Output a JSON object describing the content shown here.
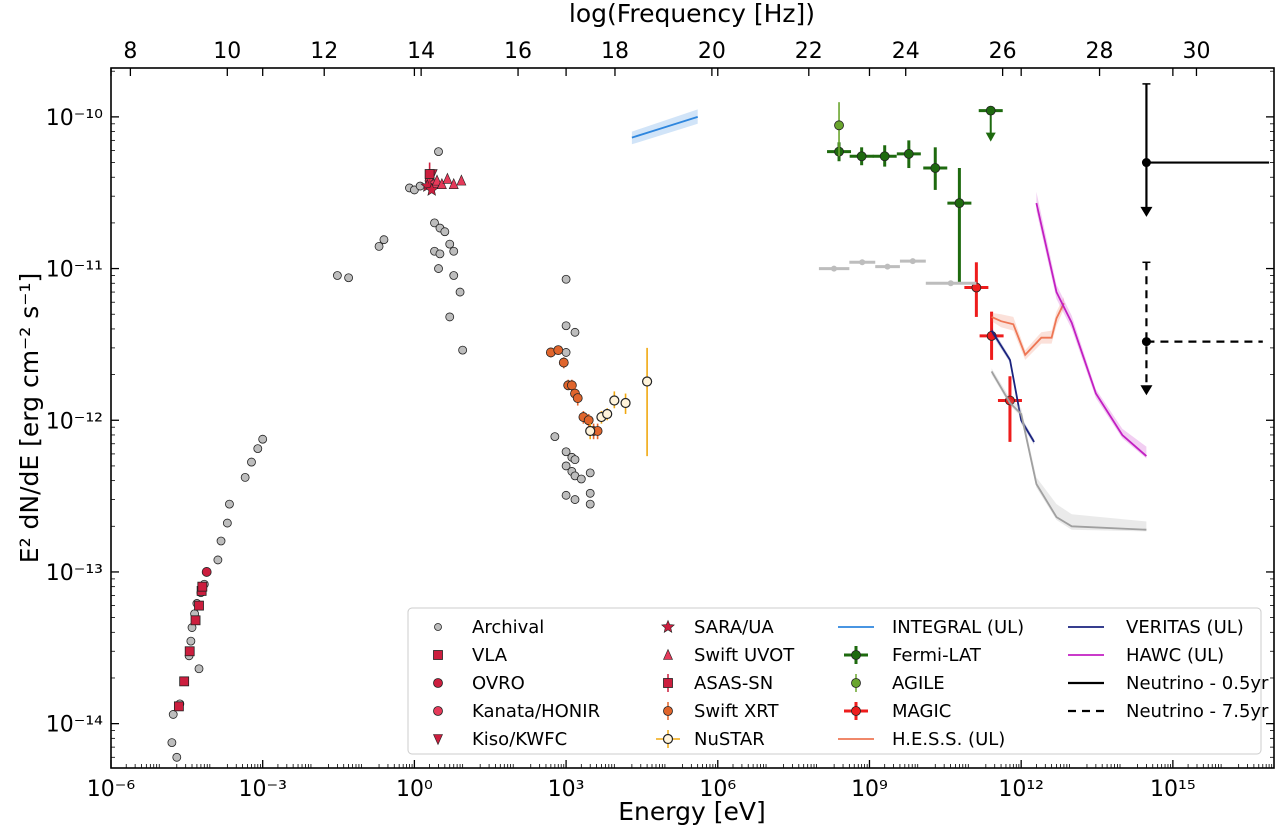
{
  "chart_data": {
    "type": "scatter",
    "title": "",
    "xlabel": "Energy [eV]",
    "x2label": "log(Frequency [Hz])",
    "ylabel": "E² dN/dE [erg cm⁻² s⁻¹]",
    "xscale": "log",
    "yscale": "log",
    "xlim": [
      1e-06,
      1e+17
    ],
    "ylim": [
      5.1e-15,
      2.1e-10
    ],
    "x2lim": [
      7.6,
      31.6
    ],
    "xticks": [
      {
        "value": 1e-06,
        "label": "10⁻⁶"
      },
      {
        "value": 0.001,
        "label": "10⁻³"
      },
      {
        "value": 1,
        "label": "10⁰"
      },
      {
        "value": 1000.0,
        "label": "10³"
      },
      {
        "value": 1000000.0,
        "label": "10⁶"
      },
      {
        "value": 1000000000.0,
        "label": "10⁹"
      },
      {
        "value": 1000000000000.0,
        "label": "10¹²"
      },
      {
        "value": 1000000000000000.0,
        "label": "10¹⁵"
      }
    ],
    "yticks": [
      {
        "value": 1e-14,
        "label": "10⁻¹⁴"
      },
      {
        "value": 1e-13,
        "label": "10⁻¹³"
      },
      {
        "value": 1e-12,
        "label": "10⁻¹²"
      },
      {
        "value": 1e-11,
        "label": "10⁻¹¹"
      },
      {
        "value": 1e-10,
        "label": "10⁻¹⁰"
      }
    ],
    "x2ticks": [
      "8",
      "10",
      "12",
      "14",
      "16",
      "18",
      "20",
      "22",
      "24",
      "26",
      "28",
      "30"
    ],
    "legend_placement": "lower-right",
    "series": [
      {
        "name": "Archival",
        "kind": "points",
        "marker": "circle",
        "color": "#bdbdbd",
        "points": [
          [
            1.6e-05,
            7.5e-15
          ],
          [
            1.7e-05,
            1.15e-14
          ],
          [
            2e-05,
            6e-15
          ],
          [
            2.3e-05,
            1.35e-14
          ],
          [
            2.8e-05,
            1.9e-14
          ],
          [
            3.5e-05,
            2.8e-14
          ],
          [
            3.8e-05,
            3.5e-14
          ],
          [
            4e-05,
            4.3e-14
          ],
          [
            4.5e-05,
            5.3e-14
          ],
          [
            5e-05,
            6.2e-14
          ],
          [
            5.5e-05,
            2.3e-14
          ],
          [
            6e-05,
            7.3e-14
          ],
          [
            7e-05,
            8.3e-14
          ],
          [
            0.00013,
            1.2e-13
          ],
          [
            0.00015,
            1.6e-13
          ],
          [
            0.0002,
            2.1e-13
          ],
          [
            0.00022,
            2.8e-13
          ],
          [
            0.00045,
            4.2e-13
          ],
          [
            0.0006,
            5.3e-13
          ],
          [
            0.0008,
            6.5e-13
          ],
          [
            0.001,
            7.5e-13
          ],
          [
            0.03,
            9e-12
          ],
          [
            0.05,
            8.7e-12
          ],
          [
            0.2,
            1.4e-11
          ],
          [
            0.25,
            1.55e-11
          ],
          [
            0.8,
            3.4e-11
          ],
          [
            1.0,
            3.3e-11
          ],
          [
            1.3,
            3.5e-11
          ],
          [
            3.0,
            5.9e-11
          ],
          [
            2.5,
            2e-11
          ],
          [
            3.2,
            1.85e-11
          ],
          [
            4.0,
            1.75e-11
          ],
          [
            2.5,
            1.3e-11
          ],
          [
            3.2,
            1.25e-11
          ],
          [
            5.0,
            1.45e-11
          ],
          [
            6.0,
            1.3e-11
          ],
          [
            3.0,
            1e-11
          ],
          [
            6.0,
            9e-12
          ],
          [
            5.0,
            4.8e-12
          ],
          [
            8.0,
            7e-12
          ],
          [
            9.0,
            2.9e-12
          ],
          [
            1000.0,
            8.5e-12
          ],
          [
            1000.0,
            4.2e-12
          ],
          [
            1500.0,
            3.8e-12
          ],
          [
            1000.0,
            2.8e-12
          ],
          [
            600,
            7.8e-13
          ],
          [
            1000.0,
            6.2e-13
          ],
          [
            1300.0,
            5.7e-13
          ],
          [
            1500.0,
            5.5e-13
          ],
          [
            1000.0,
            5e-13
          ],
          [
            1300.0,
            4.6e-13
          ],
          [
            1500.0,
            4.3e-13
          ],
          [
            2000.0,
            4.1e-13
          ],
          [
            3000.0,
            4.5e-13
          ],
          [
            1000.0,
            3.2e-13
          ],
          [
            1500.0,
            3e-13
          ],
          [
            3000.0,
            3.3e-13
          ],
          [
            3000.0,
            2.8e-13
          ]
        ]
      },
      {
        "name": "VLA",
        "kind": "points",
        "marker": "square",
        "color": "#cc1e3e",
        "points": [
          [
            2.2e-05,
            1.3e-14
          ],
          [
            2.8e-05,
            1.9e-14
          ],
          [
            3.6e-05,
            3e-14
          ],
          [
            4.7e-05,
            4.8e-14
          ],
          [
            5.5e-05,
            6e-14
          ],
          [
            6.2e-05,
            7.5e-14
          ],
          [
            6.4e-05,
            8e-14
          ]
        ]
      },
      {
        "name": "OVRO",
        "kind": "points",
        "marker": "circle",
        "color": "#cc1e3e",
        "points": [
          [
            7.8e-05,
            1e-13
          ]
        ]
      },
      {
        "name": "Kanata/HONIR",
        "kind": "points",
        "marker": "circle",
        "color": "#e63a5a",
        "points": [
          [
            2.0,
            3.8e-11
          ],
          [
            2.5,
            3.6e-11
          ]
        ]
      },
      {
        "name": "Kiso/KWFC",
        "kind": "points",
        "marker": "triangle-down",
        "color": "#cc1e3e",
        "points": [
          [
            2.3,
            4.2e-11
          ]
        ]
      },
      {
        "name": "SARA/UA",
        "kind": "points",
        "marker": "star",
        "color": "#cc1e3e",
        "points": [
          [
            1.8,
            3.5e-11
          ],
          [
            2.2,
            3.3e-11
          ]
        ]
      },
      {
        "name": "Swift UVOT",
        "kind": "points",
        "marker": "triangle-up",
        "color": "#e63a5a",
        "points": [
          [
            2.8,
            3.8e-11
          ],
          [
            3.5,
            3.6e-11
          ],
          [
            4.5,
            3.9e-11
          ],
          [
            6.0,
            3.6e-11
          ],
          [
            8.5,
            3.8e-11
          ]
        ]
      },
      {
        "name": "ASAS-SN",
        "kind": "errorpoints",
        "marker": "square",
        "color": "#cc1e3e",
        "points": [
          [
            2.0,
            4.2e-11,
            3.6e-11,
            5e-11
          ]
        ]
      },
      {
        "name": "Swift XRT",
        "kind": "errorpoints",
        "marker": "circle",
        "color": "#e0652c",
        "points": [
          [
            500,
            2.8e-12,
            2.6e-12,
            3e-12
          ],
          [
            700,
            2.9e-12,
            2.7e-12,
            3.1e-12
          ],
          [
            900,
            2.4e-12,
            2.2e-12,
            2.6e-12
          ],
          [
            1100.0,
            1.7e-12,
            1.6e-12,
            1.85e-12
          ],
          [
            1300.0,
            1.7e-12,
            1.55e-12,
            1.85e-12
          ],
          [
            1500.0,
            1.5e-12,
            1.35e-12,
            1.65e-12
          ],
          [
            1700.0,
            1.4e-12,
            1.25e-12,
            1.55e-12
          ],
          [
            2200.0,
            1.05e-12,
            9.5e-13,
            1.15e-12
          ],
          [
            2800.0,
            1e-12,
            9e-13,
            1.1e-12
          ],
          [
            3500.0,
            8.5e-13,
            7.5e-13,
            9.5e-13
          ],
          [
            4200.0,
            8.5e-13,
            7.5e-13,
            9.5e-13
          ]
        ]
      },
      {
        "name": "NuSTAR",
        "kind": "errorpoints",
        "marker": "circle-open",
        "color": "#f0a810",
        "points": [
          [
            3000.0,
            8.5e-13,
            7.5e-13,
            9.5e-13
          ],
          [
            5000.0,
            1.05e-12,
            9.5e-13,
            1.15e-12
          ],
          [
            6500.0,
            1.1e-12,
            1e-12,
            1.2e-12
          ],
          [
            9000.0,
            1.35e-12,
            1.2e-12,
            1.55e-12
          ],
          [
            15000.0,
            1.3e-12,
            1.1e-12,
            1.5e-12
          ],
          [
            40000.0,
            1.8e-12,
            5.8e-13,
            3e-12
          ]
        ]
      },
      {
        "name": "INTEGRAL (UL)",
        "kind": "band",
        "color": "#2e86de",
        "line": [
          [
            20000.0,
            7.3e-11
          ],
          [
            400000.0,
            1e-10
          ]
        ],
        "band": [
          [
            20000.0,
            6.6e-11,
            8e-11
          ],
          [
            400000.0,
            9e-11,
            1.12e-10
          ]
        ]
      },
      {
        "name": "Fermi-LAT",
        "kind": "errorpoints",
        "marker": "circle",
        "color": "#1e6a0f",
        "points": [
          [
            250000000.0,
            5.9e-11,
            5.1e-11,
            6.8e-11
          ],
          [
            700000000.0,
            5.5e-11,
            4.8e-11,
            6.3e-11
          ],
          [
            2000000000.0,
            5.5e-11,
            4.7e-11,
            6.5e-11
          ],
          [
            6000000000.0,
            5.7e-11,
            4.6e-11,
            7e-11
          ],
          [
            20000000000.0,
            4.6e-11,
            3.3e-11,
            6.3e-11
          ],
          [
            60000000000.0,
            2.7e-11,
            8e-12,
            4.6e-11
          ],
          [
            250000000000.0,
            1.1e-10,
            1.1e-10,
            1.1e-10
          ]
        ]
      },
      {
        "name": "AGILE",
        "kind": "errorpoints",
        "marker": "circle",
        "color": "#6aa52e",
        "points": [
          [
            250000000.0,
            8.8e-11,
            5.5e-11,
            1.25e-10
          ]
        ]
      },
      {
        "name": "MAGIC",
        "kind": "errorpoints",
        "marker": "circle",
        "color": "#ee1c1c",
        "points": [
          [
            130000000000.0,
            7.5e-12,
            4.8e-12,
            1.1e-11
          ],
          [
            260000000000.0,
            3.6e-12,
            2.5e-12,
            5.2e-12
          ],
          [
            600000000000.0,
            1.35e-12,
            7.2e-13,
            1.95e-12
          ]
        ]
      },
      {
        "name": "H.E.S.S. (UL)",
        "kind": "band",
        "color": "#ee7755",
        "line": [
          [
            260000000000.0,
            4.8e-12
          ],
          [
            400000000000.0,
            4.5e-12
          ],
          [
            700000000000.0,
            4.3e-12
          ],
          [
            1200000000000.0,
            2.7e-12
          ],
          [
            2500000000000.0,
            3.5e-12
          ],
          [
            4000000000000.0,
            3.5e-12
          ],
          [
            5000000000000.0,
            4.7e-12
          ],
          [
            7000000000000.0,
            5.9e-12
          ]
        ],
        "band": [
          [
            260000000000.0,
            4.5e-12,
            5.1e-12
          ],
          [
            400000000000.0,
            4.1e-12,
            5e-12
          ],
          [
            700000000000.0,
            3.9e-12,
            4.8e-12
          ],
          [
            1200000000000.0,
            2.5e-12,
            2.9e-12
          ],
          [
            2500000000000.0,
            3.2e-12,
            3.8e-12
          ],
          [
            4000000000000.0,
            3.2e-12,
            3.9e-12
          ],
          [
            5000000000000.0,
            4.2e-12,
            5.2e-12
          ],
          [
            7000000000000.0,
            5.4e-12,
            6.5e-12
          ]
        ]
      },
      {
        "name": "VERITAS (UL)",
        "kind": "band",
        "color": "#1a237e",
        "line": [
          [
            260000000000.0,
            3.9e-12
          ],
          [
            600000000000.0,
            2.5e-12
          ],
          [
            1000000000000.0,
            1e-12
          ],
          [
            1800000000000.0,
            7.2e-13
          ]
        ],
        "band": [
          [
            260000000000.0,
            3.7e-12,
            4.1e-12
          ],
          [
            600000000000.0,
            2.4e-12,
            2.6e-12
          ],
          [
            1000000000000.0,
            9.5e-13,
            1.05e-12
          ],
          [
            1800000000000.0,
            6.9e-13,
            7.5e-13
          ]
        ]
      },
      {
        "name": "HAWC (UL)",
        "kind": "band",
        "color": "#c21fc2",
        "line": [
          [
            2000000000000.0,
            2.7e-11
          ],
          [
            5000000000000.0,
            7e-12
          ],
          [
            10000000000000.0,
            4.4e-12
          ],
          [
            30000000000000.0,
            1.5e-12
          ],
          [
            100000000000000.0,
            8e-13
          ],
          [
            300000000000000.0,
            5.8e-13
          ]
        ],
        "band": [
          [
            2000000000000.0,
            2.4e-11,
            3.2e-11
          ],
          [
            5000000000000.0,
            6.3e-12,
            7.8e-12
          ],
          [
            10000000000000.0,
            4e-12,
            4.9e-12
          ],
          [
            30000000000000.0,
            1.4e-12,
            1.6e-12
          ],
          [
            100000000000000.0,
            7.6e-13,
            8.8e-13
          ],
          [
            300000000000000.0,
            5.6e-13,
            6.7e-13
          ]
        ]
      },
      {
        "name": "",
        "kind": "band",
        "color": "#a0a0a0",
        "line": [
          [
            260000000000.0,
            2.1e-12
          ],
          [
            600000000000.0,
            1.3e-12
          ],
          [
            1000000000000.0,
            1.1e-12
          ],
          [
            2000000000000.0,
            3.8e-13
          ],
          [
            5000000000000.0,
            2.3e-13
          ],
          [
            10000000000000.0,
            2e-13
          ],
          [
            300000000000000.0,
            1.9e-13
          ]
        ],
        "band": [
          [
            260000000000.0,
            2e-12,
            2.2e-12
          ],
          [
            600000000000.0,
            1.25e-12,
            1.4e-12
          ],
          [
            1000000000000.0,
            1.05e-12,
            1.2e-12
          ],
          [
            2000000000000.0,
            3.6e-13,
            4.2e-13
          ],
          [
            5000000000000.0,
            2.2e-13,
            2.8e-13
          ],
          [
            10000000000000.0,
            1.9e-13,
            2.4e-13
          ],
          [
            300000000000000.0,
            1.85e-13,
            2.15e-13
          ]
        ]
      },
      {
        "name": "",
        "kind": "hsegments",
        "color": "#bdbdbd",
        "segments": [
          [
            100000000.0,
            400000000.0,
            1e-11
          ],
          [
            400000000.0,
            1300000000.0,
            1.1e-11
          ],
          [
            1300000000.0,
            4000000000.0,
            1.03e-11
          ],
          [
            4000000000.0,
            13000000000.0,
            1.12e-11
          ],
          [
            13000000000.0,
            130000000000.0,
            8e-12
          ]
        ]
      },
      {
        "name": "Neutrino - 0.5yr",
        "kind": "ul",
        "color": "#000000",
        "dash": false,
        "point": [
          300000000000000.0,
          5e-11
        ],
        "xlo": 300000000000000.0,
        "xhi": 8e+16,
        "ytop": 1.65e-10,
        "ybottom": 2.4e-11
      },
      {
        "name": "Neutrino - 7.5yr",
        "kind": "ul",
        "color": "#000000",
        "dash": true,
        "point": [
          300000000000000.0,
          3.3e-12
        ],
        "xlo": 300000000000000.0,
        "xhi": 6e+16,
        "ytop": 1.1e-11,
        "ybottom": 1.6e-12
      }
    ],
    "legend": [
      [
        "Archival",
        "SARA/UA",
        "INTEGRAL (UL)",
        "VERITAS (UL)"
      ],
      [
        "VLA",
        "Swift UVOT",
        "Fermi-LAT",
        "HAWC (UL)"
      ],
      [
        "OVRO",
        "ASAS-SN",
        "AGILE",
        "Neutrino - 0.5yr"
      ],
      [
        "Kanata/HONIR",
        "Swift XRT",
        "MAGIC",
        "Neutrino - 7.5yr"
      ],
      [
        "Kiso/KWFC",
        "NuSTAR",
        "H.E.S.S. (UL)",
        ""
      ]
    ]
  }
}
